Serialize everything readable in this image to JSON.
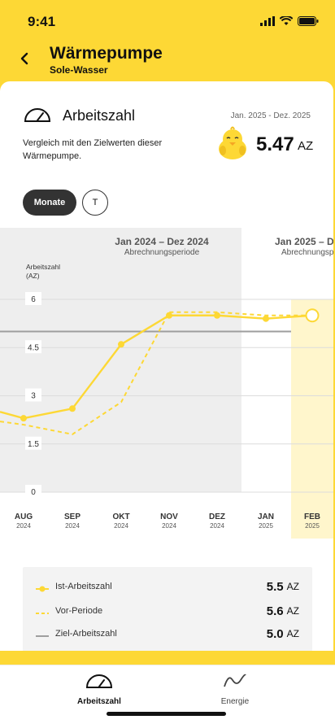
{
  "status": {
    "time": "9:41"
  },
  "header": {
    "title": "Wärmepumpe",
    "subtitle": "Sole-Wasser",
    "back_icon": "chevron-left-icon"
  },
  "card": {
    "title": "Arbeitszahl",
    "date_range": "Jan. 2025 - Dez. 2025",
    "description": "Vergleich mit den Zielwerten dieser Wärmepumpe.",
    "value": "5.47",
    "unit": "AZ"
  },
  "toggle": {
    "active": "Monate",
    "inactive": "T"
  },
  "chart_data": {
    "type": "line",
    "ylabel": "Arbeitszahl (AZ)",
    "yticks": [
      "6",
      "4.5",
      "3",
      "1.5",
      "0"
    ],
    "ylim": [
      0,
      6
    ],
    "periods": [
      {
        "label": "Jan 2024 – Dez 2024",
        "sublabel": "Abrechnungsperiode"
      },
      {
        "label": "Jan 2025 – D",
        "sublabel": "Abrechnungsp"
      }
    ],
    "categories": [
      {
        "month": "AUG",
        "year": "2024"
      },
      {
        "month": "SEP",
        "year": "2024"
      },
      {
        "month": "OKT",
        "year": "2024"
      },
      {
        "month": "NOV",
        "year": "2024"
      },
      {
        "month": "DEZ",
        "year": "2024"
      },
      {
        "month": "JAN",
        "year": "2025"
      },
      {
        "month": "FEB",
        "year": "2025"
      }
    ],
    "series": [
      {
        "name": "Ist-Arbeitszahl",
        "values": [
          2.3,
          2.6,
          4.6,
          5.5,
          5.5,
          5.4,
          5.5
        ]
      },
      {
        "name": "Vor-Periode",
        "values": [
          2.1,
          1.8,
          2.8,
          5.6,
          5.6,
          5.5,
          5.5
        ]
      }
    ],
    "target": 5.0,
    "grid": true,
    "colors": {
      "ist": "#fdd835",
      "vor": "#fdd835",
      "ziel": "#9e9e9e",
      "highlight": "#fff6cc",
      "period_bg": "#eeeeee"
    }
  },
  "legend": [
    {
      "name": "Ist-Arbeitszahl",
      "value": "5.5",
      "unit": "AZ",
      "style": "solid-dot"
    },
    {
      "name": "Vor-Periode",
      "value": "5.6",
      "unit": "AZ",
      "style": "dashed"
    },
    {
      "name": "Ziel-Arbeitszahl",
      "value": "5.0",
      "unit": "AZ",
      "style": "gray"
    }
  ],
  "nav": [
    {
      "label": "Arbeitszahl",
      "icon": "gauge-icon",
      "active": true
    },
    {
      "label": "Energie",
      "icon": "wave-icon",
      "active": false
    }
  ]
}
